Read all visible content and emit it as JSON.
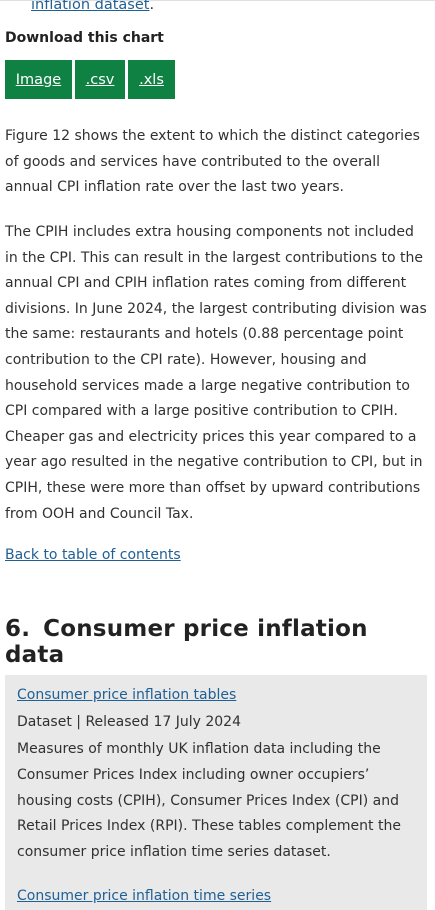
{
  "top_link": {
    "text": "inflation dataset",
    "trailing": "."
  },
  "download": {
    "label": "Download this chart",
    "buttons": [
      "Image",
      ".csv",
      ".xls"
    ]
  },
  "paragraphs": [
    "Figure 12 shows the extent to which the distinct categories of goods and services have contributed to the overall annual CPI inflation rate over the last two years.",
    "The CPIH includes extra housing components not included in the CPI. This can result in the largest contributions to the annual CPI and CPIH inflation rates coming from different divisions. In June 2024, the largest contributing division was the same: restaurants and hotels (0.88 percentage point contribution to the CPI rate). However, housing and household services made a large negative contribution to CPI compared with a large positive contribution to CPIH. Cheaper gas and electricity prices this year compared to a year ago resulted in the negative contribution to CPI, but in CPIH, these were more than offset by upward contributions from OOH and Council Tax."
  ],
  "back_link": "Back to table of contents",
  "section": {
    "number": "6.",
    "title": "Consumer price inflation data"
  },
  "datasets": [
    {
      "title": "Consumer price inflation tables",
      "meta": "Dataset | Released 17 July 2024",
      "description": "Measures of monthly UK inflation data including the Consumer Prices Index including owner occupiers’ housing costs (CPIH), Consumer Prices Index (CPI) and Retail Prices Index (RPI). These tables complement the consumer price inflation time series dataset."
    },
    {
      "title": "Consumer price inflation time series"
    }
  ],
  "colors": {
    "link": "#206095",
    "button": "#0f8243",
    "card": "#e9e9e9"
  }
}
